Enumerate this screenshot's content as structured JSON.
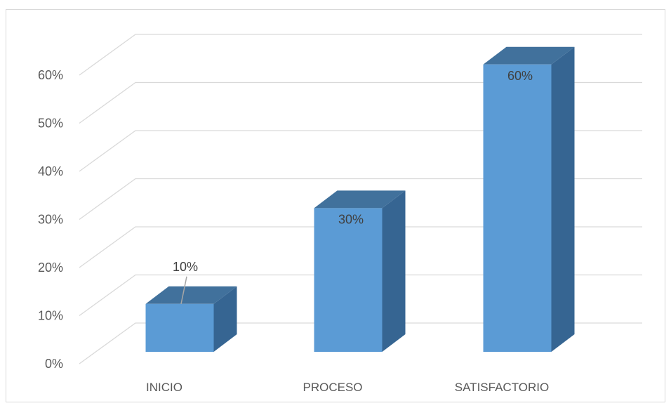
{
  "chart_data": {
    "type": "bar",
    "style": "3d-column",
    "categories": [
      "INICIO",
      "PROCESO",
      "SATISFACTORIO"
    ],
    "values": [
      10,
      30,
      60
    ],
    "data_labels": [
      "10%",
      "30%",
      "60%"
    ],
    "y_ticks": [
      "0%",
      "10%",
      "20%",
      "30%",
      "40%",
      "50%",
      "60%"
    ],
    "ylim": [
      0,
      65
    ],
    "grid": true,
    "legend": "none",
    "colors": {
      "bar_front": "#5b9bd5",
      "bar_top": "#41719c",
      "bar_side": "#366592",
      "grid": "#d9d9d9"
    }
  }
}
